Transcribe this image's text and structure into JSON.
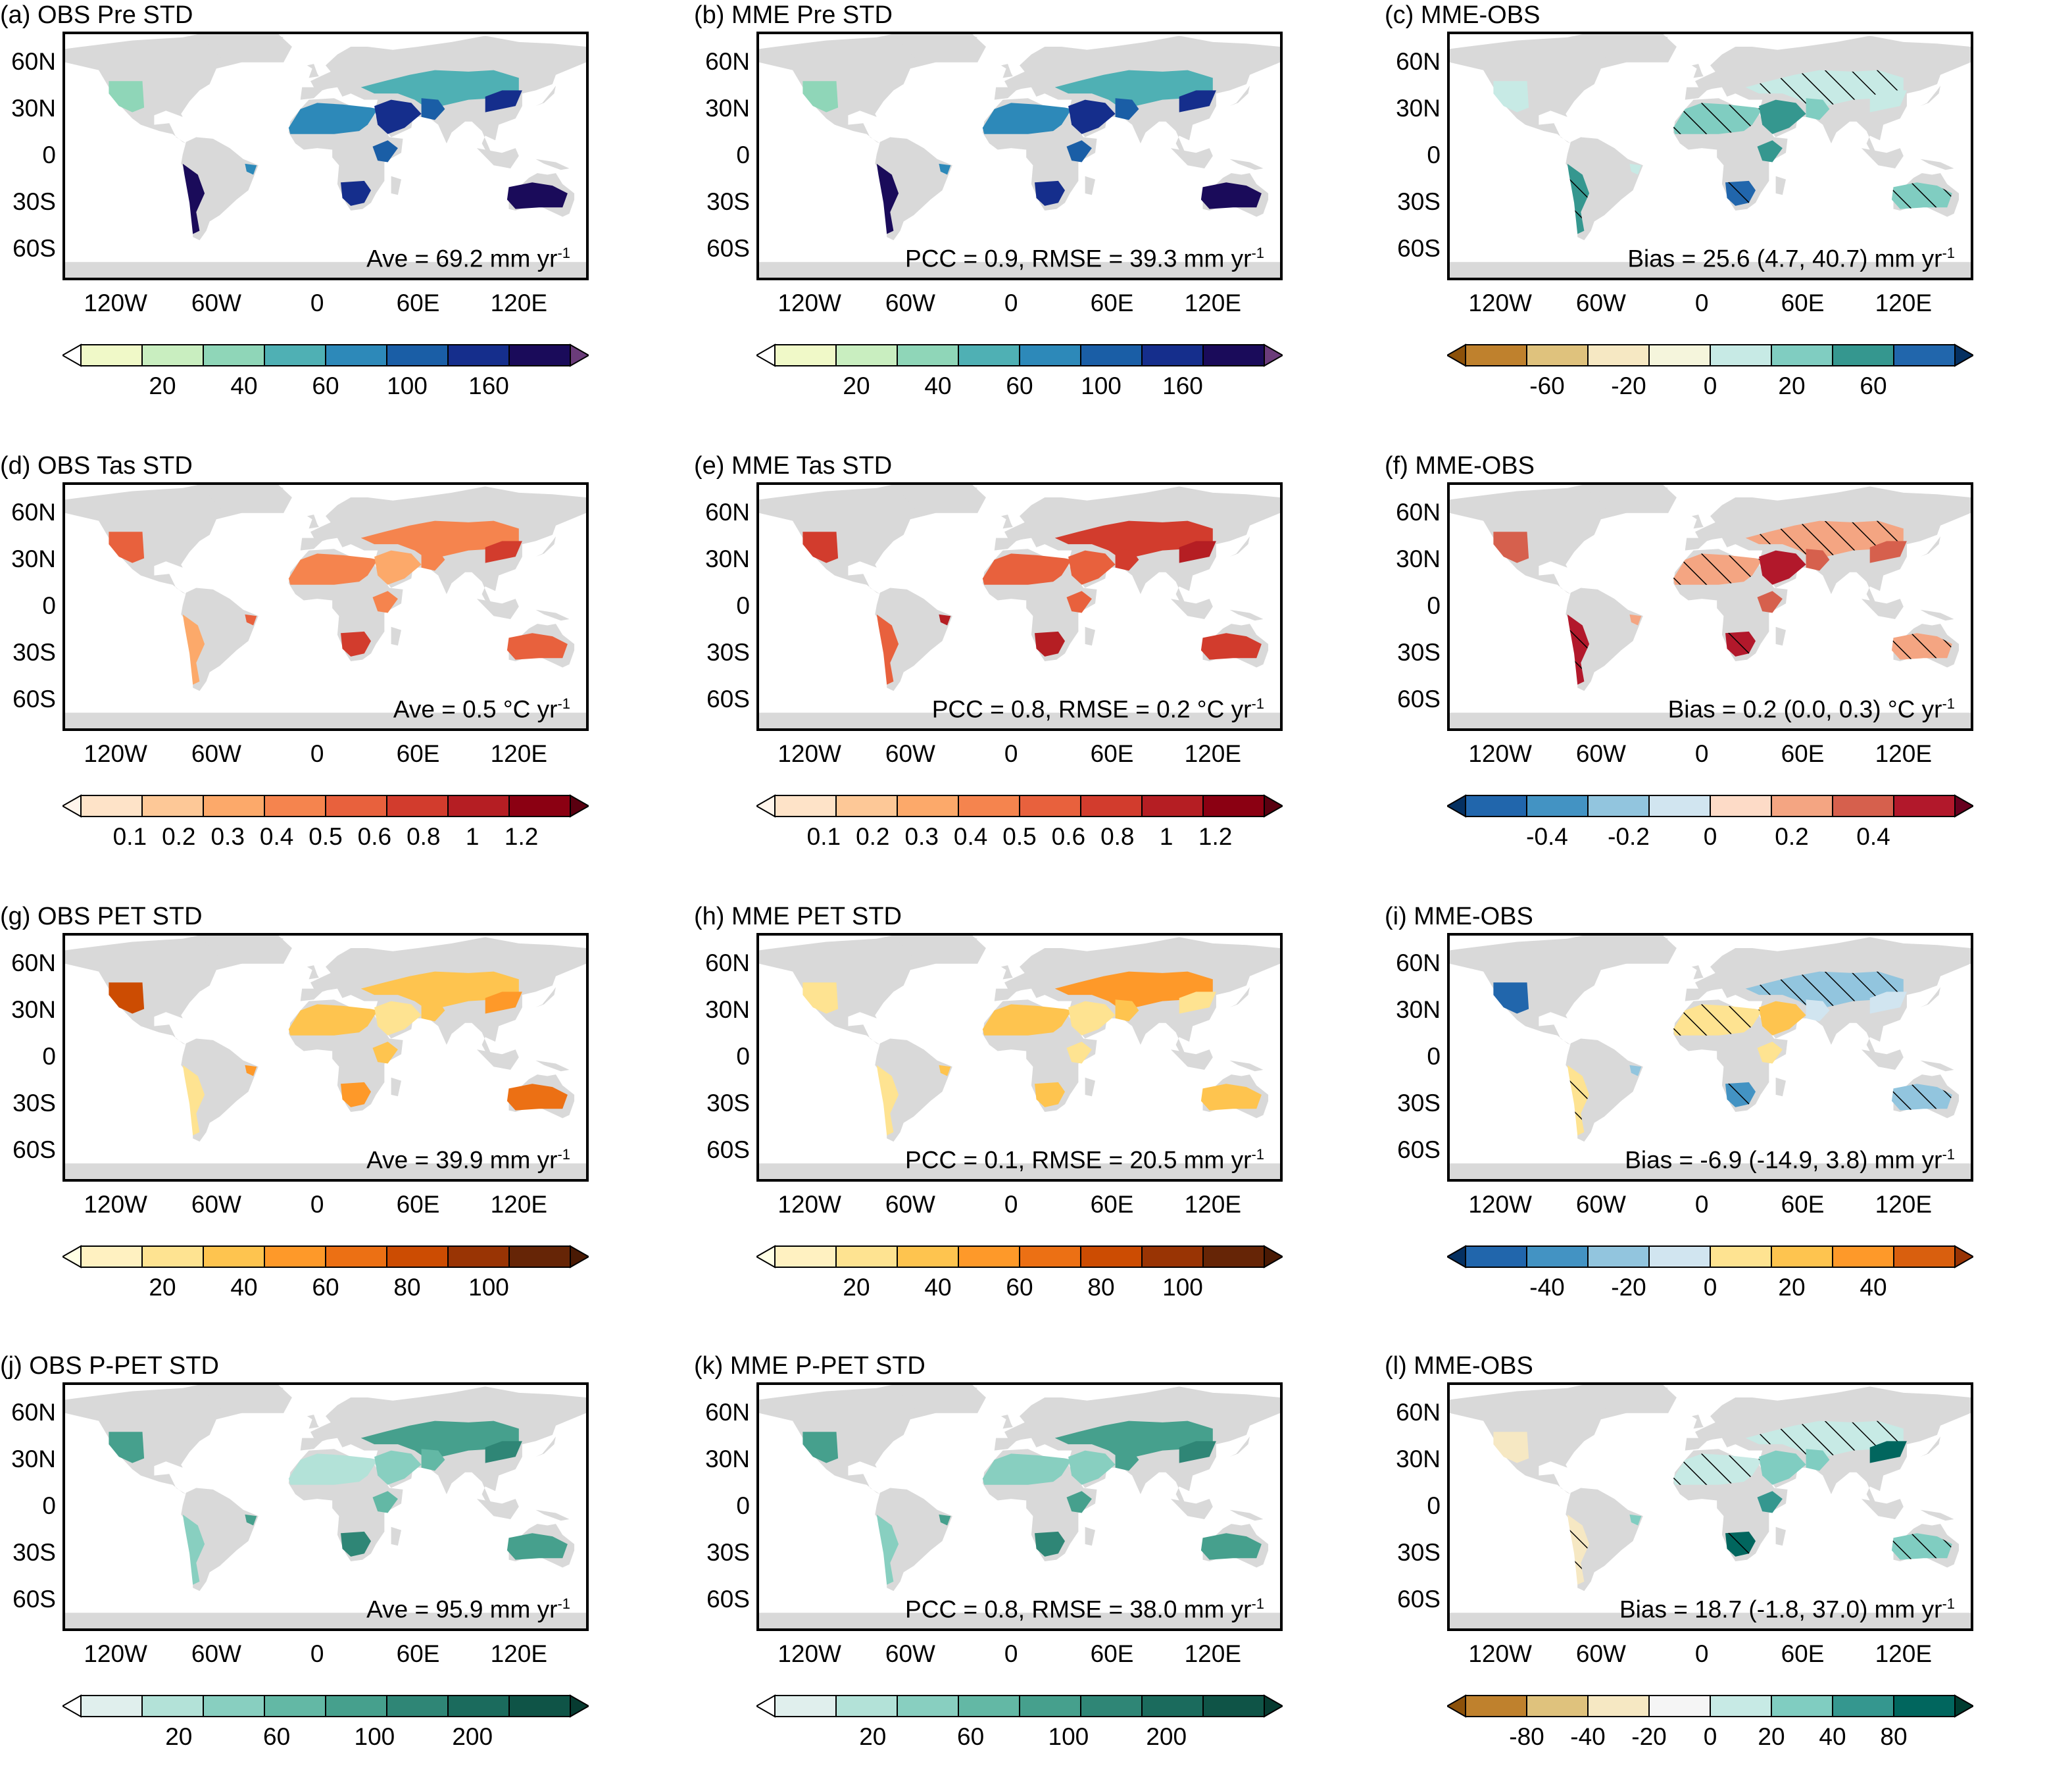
{
  "map_common": {
    "lat_labels": [
      "60N",
      "30N",
      "0",
      "30S",
      "60S"
    ],
    "lon_labels": [
      "120W",
      "60W",
      "0",
      "60E",
      "120E"
    ]
  },
  "panels": [
    {
      "id": "a",
      "title": "(a) OBS Pre STD",
      "stat_main": "Ave = 69.2 mm yr",
      "stat_sup": "-1",
      "hatch": false,
      "colors": [
        "#ffffff",
        "#f0f9c8",
        "#c9eec0",
        "#8fd6b8",
        "#4fb0b4",
        "#2d89b9",
        "#1a5ea6",
        "#152e8c",
        "#1a0b5a",
        "#6b3c7a"
      ],
      "levels": [
        "20",
        "40",
        "60",
        "100",
        "160"
      ],
      "region_palette": [
        3,
        5,
        7,
        4,
        6,
        8,
        5,
        7,
        6,
        8,
        7
      ]
    },
    {
      "id": "b",
      "title": "(b) MME Pre STD",
      "stat_main": "PCC = 0.9, RMSE = 39.3 mm yr",
      "stat_sup": "-1",
      "hatch": false,
      "colors": [
        "#ffffff",
        "#f0f9c8",
        "#c9eec0",
        "#8fd6b8",
        "#4fb0b4",
        "#2d89b9",
        "#1a5ea6",
        "#152e8c",
        "#1a0b5a",
        "#6b3c7a"
      ],
      "levels": [
        "20",
        "40",
        "60",
        "100",
        "160"
      ],
      "region_palette": [
        3,
        5,
        7,
        4,
        6,
        8,
        5,
        7,
        6,
        8,
        7
      ]
    },
    {
      "id": "c",
      "title": "(c) MME-OBS",
      "stat_main": "Bias = 25.6 (4.7, 40.7) mm yr",
      "stat_sup": "-1",
      "hatch": true,
      "colors": [
        "#8c510a",
        "#bf812d",
        "#dfc27d",
        "#f6e8c3",
        "#f5f5dc",
        "#c7eae5",
        "#80cdc1",
        "#35978f",
        "#2166ac",
        "#053061"
      ],
      "levels": [
        "-60",
        "-20",
        "0",
        "20",
        "60"
      ],
      "region_palette": [
        5,
        6,
        7,
        5,
        6,
        7,
        5,
        8,
        7,
        6,
        5
      ]
    },
    {
      "id": "d",
      "title": "(d) OBS Tas STD",
      "stat_main": "Ave = 0.5 °C yr",
      "stat_sup": "-1",
      "hatch": false,
      "colors": [
        "#fff5eb",
        "#fee3c8",
        "#fdc897",
        "#fca96a",
        "#f5844e",
        "#e8613d",
        "#d23c2d",
        "#b51e23",
        "#8b0012",
        "#5a0010"
      ],
      "levels": [
        "0.1",
        "0.2",
        "0.3",
        "0.4",
        "0.5",
        "0.6",
        "0.8",
        "1",
        "1.2"
      ],
      "region_palette": [
        5,
        4,
        3,
        4,
        4,
        3,
        5,
        6,
        4,
        5,
        6
      ]
    },
    {
      "id": "e",
      "title": "(e) MME Tas STD",
      "stat_main": "PCC = 0.8, RMSE = 0.2 °C yr",
      "stat_sup": "-1",
      "hatch": false,
      "colors": [
        "#fff5eb",
        "#fee3c8",
        "#fdc897",
        "#fca96a",
        "#f5844e",
        "#e8613d",
        "#d23c2d",
        "#b51e23",
        "#8b0012",
        "#5a0010"
      ],
      "levels": [
        "0.1",
        "0.2",
        "0.3",
        "0.4",
        "0.5",
        "0.6",
        "0.8",
        "1",
        "1.2"
      ],
      "region_palette": [
        6,
        5,
        5,
        6,
        6,
        5,
        7,
        7,
        5,
        6,
        7
      ]
    },
    {
      "id": "f",
      "title": "(f) MME-OBS",
      "stat_main": "Bias = 0.2 (0.0, 0.3) °C yr",
      "stat_sup": "-1",
      "hatch": true,
      "colors": [
        "#053061",
        "#2166ac",
        "#4393c3",
        "#92c5de",
        "#d1e5f0",
        "#fddbc7",
        "#f4a582",
        "#d6604d",
        "#b2182b",
        "#67001f"
      ],
      "levels": [
        "-0.4",
        "-0.2",
        "0",
        "0.2",
        "0.4"
      ],
      "region_palette": [
        7,
        6,
        8,
        6,
        7,
        8,
        6,
        8,
        7,
        6,
        7
      ]
    },
    {
      "id": "g",
      "title": "(g) OBS PET STD",
      "stat_main": "Ave = 39.9 mm yr",
      "stat_sup": "-1",
      "hatch": false,
      "colors": [
        "#ffffe5",
        "#fff1c1",
        "#fee391",
        "#fec44f",
        "#fe9929",
        "#ec7014",
        "#cc4c02",
        "#993404",
        "#662506",
        "#4a1a04"
      ],
      "levels": [
        "20",
        "40",
        "60",
        "80",
        "100"
      ],
      "region_palette": [
        6,
        3,
        2,
        3,
        3,
        2,
        4,
        4,
        3,
        5,
        4
      ]
    },
    {
      "id": "h",
      "title": "(h) MME PET STD",
      "stat_main": "PCC = 0.1, RMSE = 20.5 mm yr",
      "stat_sup": "-1",
      "hatch": false,
      "colors": [
        "#ffffe5",
        "#fff1c1",
        "#fee391",
        "#fec44f",
        "#fe9929",
        "#ec7014",
        "#cc4c02",
        "#993404",
        "#662506",
        "#4a1a04"
      ],
      "levels": [
        "20",
        "40",
        "60",
        "80",
        "100"
      ],
      "region_palette": [
        2,
        3,
        2,
        4,
        3,
        2,
        3,
        3,
        2,
        3,
        2
      ]
    },
    {
      "id": "i",
      "title": "(i) MME-OBS",
      "stat_main": "Bias = -6.9 (-14.9, 3.8) mm yr",
      "stat_sup": "-1",
      "hatch": true,
      "colors": [
        "#053061",
        "#2166ac",
        "#4393c3",
        "#92c5de",
        "#d1e5f0",
        "#fee391",
        "#fec44f",
        "#fe9929",
        "#d95f0e",
        "#993404"
      ],
      "levels": [
        "-40",
        "-20",
        "0",
        "20",
        "40"
      ],
      "region_palette": [
        1,
        5,
        6,
        3,
        4,
        5,
        3,
        2,
        5,
        3,
        4
      ]
    },
    {
      "id": "j",
      "title": "(j) OBS P-PET STD",
      "stat_main": "Ave = 95.9 mm yr",
      "stat_sup": "-1",
      "hatch": false,
      "colors": [
        "#ffffff",
        "#e0efed",
        "#b3e2d8",
        "#88cfc0",
        "#63b8a5",
        "#46a08d",
        "#2f8676",
        "#1b6b5d",
        "#0f5447",
        "#073b31"
      ],
      "levels": [
        "20",
        "60",
        "100",
        "200"
      ],
      "region_palette": [
        5,
        2,
        3,
        5,
        4,
        3,
        5,
        6,
        4,
        5,
        6
      ]
    },
    {
      "id": "k",
      "title": "(k) MME P-PET STD",
      "stat_main": "PCC = 0.8, RMSE = 38.0 mm yr",
      "stat_sup": "-1",
      "hatch": false,
      "colors": [
        "#ffffff",
        "#e0efed",
        "#b3e2d8",
        "#88cfc0",
        "#63b8a5",
        "#46a08d",
        "#2f8676",
        "#1b6b5d",
        "#0f5447",
        "#073b31"
      ],
      "levels": [
        "20",
        "60",
        "100",
        "200"
      ],
      "region_palette": [
        5,
        3,
        3,
        5,
        5,
        3,
        5,
        6,
        5,
        5,
        6
      ]
    },
    {
      "id": "l",
      "title": "(l) MME-OBS",
      "stat_main": "Bias = 18.7 (-1.8, 37.0) mm yr",
      "stat_sup": "-1",
      "hatch": true,
      "colors": [
        "#8c510a",
        "#bf812d",
        "#dfc27d",
        "#f6e8c3",
        "#f5f5f5",
        "#c7eae5",
        "#80cdc1",
        "#35978f",
        "#01665e",
        "#003c30"
      ],
      "levels": [
        "-80",
        "-40",
        "-20",
        "0",
        "20",
        "40",
        "80"
      ],
      "region_palette": [
        3,
        5,
        6,
        5,
        6,
        3,
        6,
        8,
        7,
        6,
        8
      ]
    }
  ]
}
